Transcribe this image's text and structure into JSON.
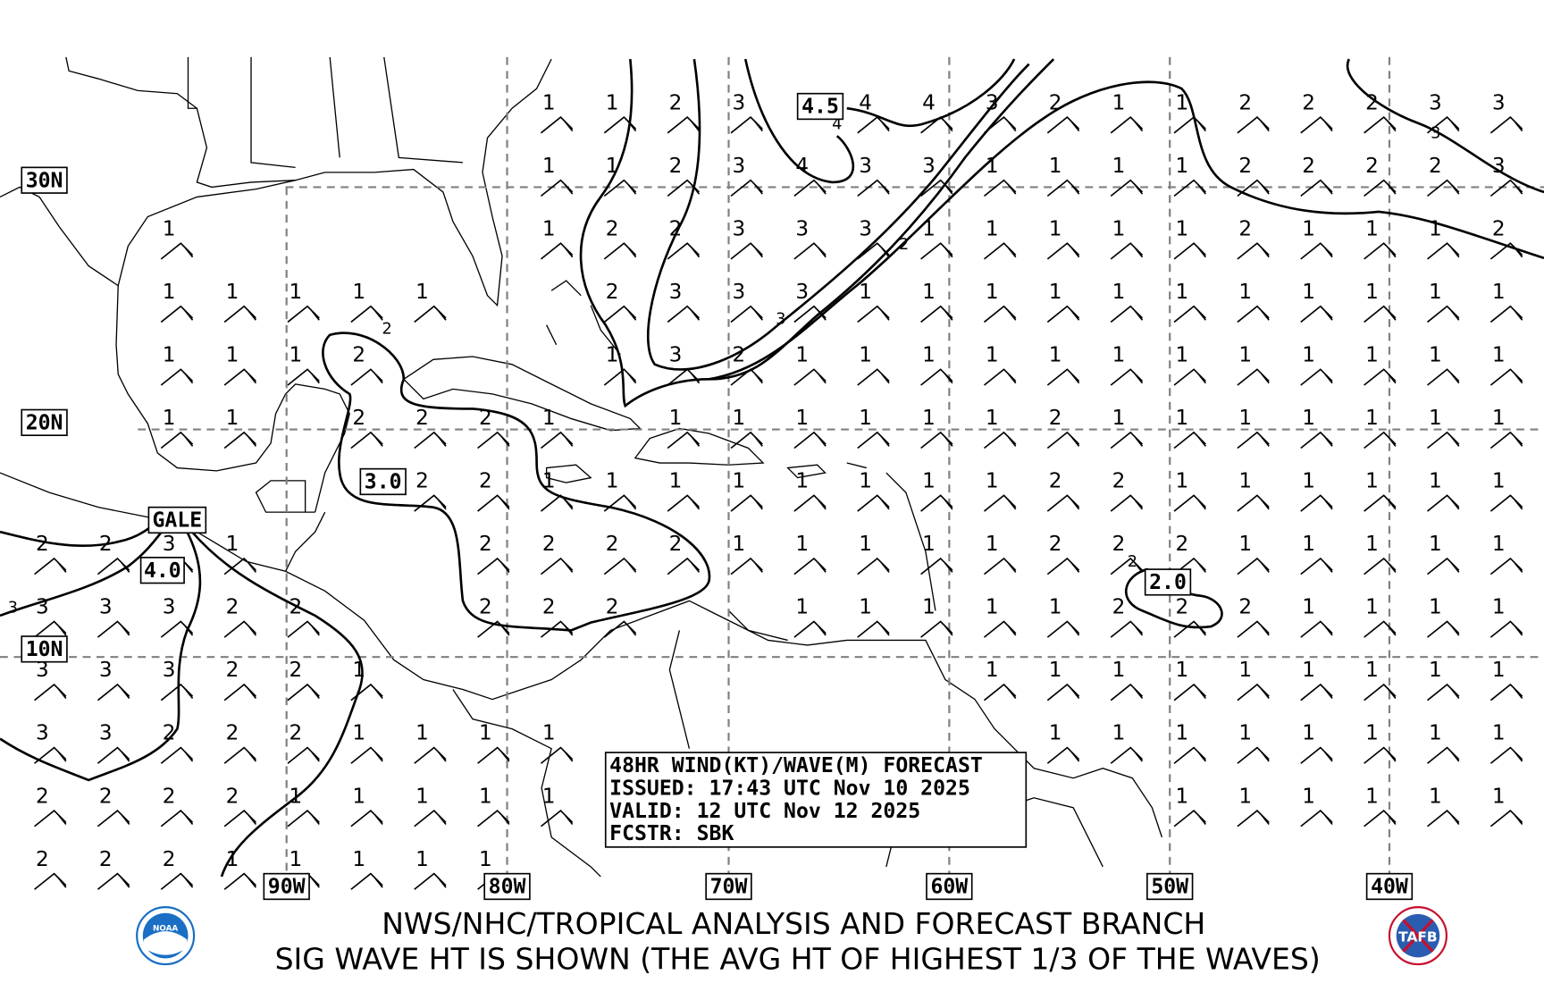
{
  "map": {
    "lat_labels": [
      "30N",
      "20N",
      "10N"
    ],
    "lon_labels": [
      "90W",
      "80W",
      "70W",
      "60W",
      "50W",
      "40W"
    ],
    "contour_labels": [
      "4.5",
      "3.0",
      "GALE",
      "4.0",
      "2.0"
    ],
    "minor_contour_labels": [
      "2",
      "2",
      "3",
      "4",
      "3",
      "2",
      "3"
    ],
    "wave_height_rows": [
      [
        null,
        null,
        null,
        null,
        null,
        null,
        null,
        null,
        1,
        1,
        2,
        3,
        null,
        4,
        4,
        3,
        2,
        1,
        1,
        2,
        2,
        2,
        3,
        3
      ],
      [
        null,
        null,
        null,
        null,
        null,
        null,
        null,
        null,
        1,
        1,
        2,
        3,
        4,
        3,
        3,
        1,
        1,
        1,
        1,
        2,
        2,
        2,
        2,
        3
      ],
      [
        null,
        null,
        1,
        null,
        null,
        null,
        null,
        null,
        1,
        2,
        2,
        3,
        3,
        3,
        1,
        1,
        1,
        1,
        1,
        2,
        1,
        1,
        1,
        2
      ],
      [
        null,
        null,
        1,
        1,
        1,
        1,
        1,
        null,
        null,
        2,
        3,
        3,
        3,
        1,
        1,
        1,
        1,
        1,
        1,
        1,
        1,
        1,
        1,
        1
      ],
      [
        null,
        null,
        1,
        1,
        1,
        2,
        null,
        null,
        null,
        1,
        3,
        2,
        1,
        1,
        1,
        1,
        1,
        1,
        1,
        1,
        1,
        1,
        1,
        1
      ],
      [
        null,
        null,
        1,
        1,
        null,
        2,
        2,
        2,
        1,
        null,
        1,
        1,
        1,
        1,
        1,
        1,
        2,
        1,
        1,
        1,
        1,
        1,
        1,
        1
      ],
      [
        null,
        null,
        null,
        null,
        null,
        null,
        2,
        2,
        1,
        1,
        1,
        1,
        1,
        1,
        1,
        1,
        2,
        2,
        1,
        1,
        1,
        1,
        1,
        1
      ],
      [
        2,
        2,
        3,
        1,
        null,
        null,
        null,
        2,
        2,
        2,
        2,
        1,
        1,
        1,
        1,
        1,
        2,
        2,
        2,
        1,
        1,
        1,
        1,
        1
      ],
      [
        3,
        3,
        3,
        2,
        2,
        null,
        null,
        2,
        2,
        2,
        null,
        null,
        1,
        1,
        1,
        1,
        1,
        2,
        2,
        2,
        1,
        1,
        1,
        1
      ],
      [
        3,
        3,
        3,
        2,
        2,
        1,
        null,
        null,
        null,
        null,
        null,
        null,
        null,
        null,
        null,
        1,
        1,
        1,
        1,
        1,
        1,
        1,
        1,
        1
      ],
      [
        3,
        3,
        2,
        2,
        2,
        1,
        1,
        1,
        1,
        null,
        null,
        null,
        null,
        null,
        null,
        null,
        1,
        1,
        1,
        1,
        1,
        1,
        1,
        1
      ],
      [
        2,
        2,
        2,
        2,
        1,
        1,
        1,
        1,
        1,
        null,
        null,
        null,
        null,
        null,
        null,
        null,
        null,
        null,
        1,
        1,
        1,
        1,
        1,
        1
      ],
      [
        2,
        2,
        2,
        1,
        1,
        1,
        1,
        1,
        null,
        null,
        null,
        null,
        null,
        null,
        null,
        null,
        null,
        null,
        null,
        null,
        null,
        null,
        null,
        null
      ]
    ]
  },
  "forecast_box": {
    "line1": "48HR WIND(KT)/WAVE(M) FORECAST",
    "line2": "ISSUED: 17:43 UTC Nov 10 2025",
    "line3": "VALID: 12 UTC Nov 12 2025",
    "line4": "FCSTR: SBK"
  },
  "footer": {
    "title1": "NWS/NHC/TROPICAL ANALYSIS AND FORECAST BRANCH",
    "title2": "SIG WAVE HT IS SHOWN (THE AVG HT OF HIGHEST 1/3 OF THE WAVES)",
    "logo_left": "NOAA",
    "logo_right": "TAFB"
  },
  "colors": {
    "noaa_blue": "#1a6fc4",
    "tafb_red": "#c8102e",
    "grid": "#808080"
  }
}
